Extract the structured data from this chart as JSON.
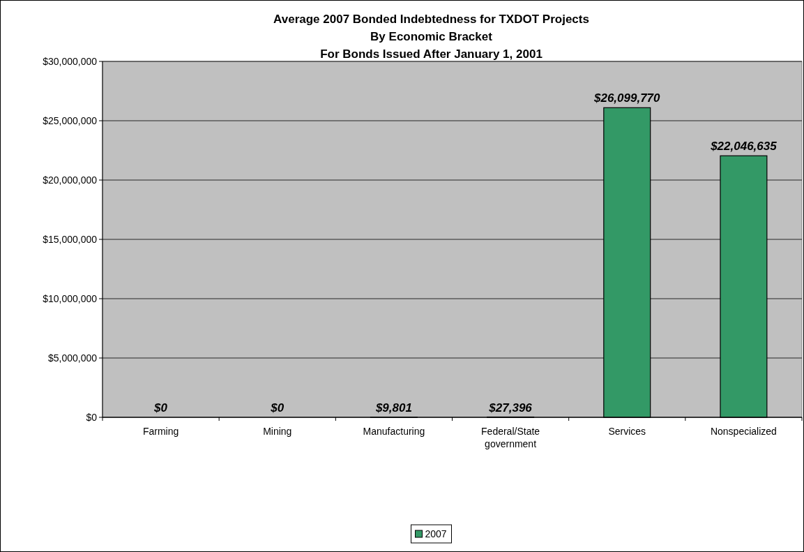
{
  "chart_data": {
    "type": "bar",
    "title": "Average 2007 Bonded Indebtedness for TXDOT Projects\nBy Economic Bracket\nFor Bonds Issued After January 1, 2001",
    "categories": [
      "Farming",
      "Mining",
      "Manufacturing",
      "Federal/State government",
      "Services",
      "Nonspecialized"
    ],
    "series": [
      {
        "name": "2007",
        "color": "#339966",
        "values": [
          0,
          0,
          9801,
          27396,
          26099770,
          22046635
        ],
        "value_labels": [
          "$0",
          "$0",
          "$9,801",
          "$27,396",
          "$26,099,770",
          "$22,046,635"
        ]
      }
    ],
    "ylim": [
      0,
      30000000
    ],
    "yticks": [
      {
        "value": 0,
        "label": "$0"
      },
      {
        "value": 5000000,
        "label": "$5,000,000"
      },
      {
        "value": 10000000,
        "label": "$10,000,000"
      },
      {
        "value": 15000000,
        "label": "$15,000,000"
      },
      {
        "value": 20000000,
        "label": "$20,000,000"
      },
      {
        "value": 25000000,
        "label": "$25,000,000"
      },
      {
        "value": 30000000,
        "label": "$30,000,000"
      }
    ],
    "grid": "y",
    "legend": "bottom"
  }
}
